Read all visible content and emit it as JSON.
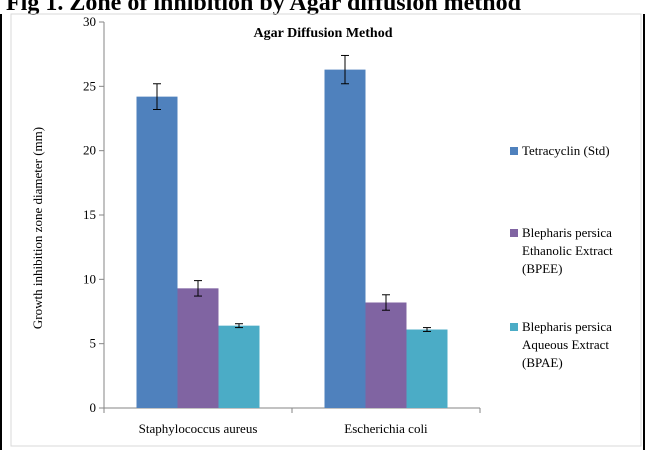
{
  "caption": "Fig 1. Zone of inhibition by Agar diffusion method",
  "chart_data": {
    "type": "bar",
    "title": "Agar Diffusion Method",
    "xlabel": "",
    "ylabel": "Growth inhibition zone diameter (mm)",
    "ylim": [
      0,
      30
    ],
    "yticks": [
      0,
      5,
      10,
      15,
      20,
      25,
      30
    ],
    "categories": [
      "Staphylococcus aureus",
      "Escherichia coli"
    ],
    "series": [
      {
        "name": "Tetracyclin (Std)",
        "color": "#4f81bd",
        "values": [
          24.2,
          26.3
        ],
        "errors": [
          1.0,
          1.1
        ]
      },
      {
        "name": "Blepharis persica Ethanolic Extract (BPEE)",
        "color": "#8064a2",
        "values": [
          9.3,
          8.2
        ],
        "errors": [
          0.6,
          0.6
        ]
      },
      {
        "name": "Blepharis persica Aqueous Extract (BPAE)",
        "color": "#4bacc6",
        "values": [
          6.4,
          6.1
        ],
        "errors": [
          0.15,
          0.15
        ]
      }
    ],
    "legend_lines": [
      [
        "Tetracyclin (Std)"
      ],
      [
        "Blepharis persica",
        "Ethanolic Extract",
        "(BPEE)"
      ],
      [
        "Blepharis persica",
        "Aqueous Extract",
        "(BPAE)"
      ]
    ],
    "legend_position": "right",
    "grid": false
  }
}
